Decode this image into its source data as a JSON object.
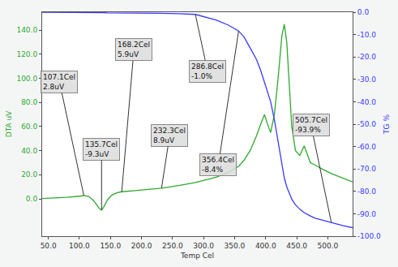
{
  "chart_data": {
    "type": "line",
    "x_label": "Temp Cel",
    "y_label": "DTA uV",
    "y2_label": "TG %",
    "grid": false,
    "tick_labels": true,
    "xlim": [
      40,
      540
    ],
    "xticks": [
      {
        "value": 50,
        "label": "50.0"
      },
      {
        "value": 100,
        "label": "100.0"
      },
      {
        "value": 150,
        "label": "150.0"
      },
      {
        "value": 200,
        "label": "200.0"
      },
      {
        "value": 250,
        "label": "250.0"
      },
      {
        "value": 300,
        "label": "300.0"
      },
      {
        "value": 350,
        "label": "350.0"
      },
      {
        "value": 400,
        "label": "400.0"
      },
      {
        "value": 450,
        "label": "450.0"
      },
      {
        "value": 500,
        "label": "500.0"
      }
    ],
    "ylim": [
      -31,
      155
    ],
    "yticks": [
      {
        "value": 0,
        "label": "0.0"
      },
      {
        "value": 20,
        "label": "20.0"
      },
      {
        "value": 40,
        "label": "40.0"
      },
      {
        "value": 60,
        "label": "60.0"
      },
      {
        "value": 80,
        "label": "80.0"
      },
      {
        "value": 100,
        "label": "100.0"
      },
      {
        "value": 120,
        "label": "120.0"
      },
      {
        "value": 140,
        "label": "140.0"
      }
    ],
    "y2lim": [
      -100,
      0
    ],
    "y2ticks": [
      {
        "value": -100,
        "label": "-100.0"
      },
      {
        "value": -90,
        "label": "-90.0"
      },
      {
        "value": -80,
        "label": "-80.0"
      },
      {
        "value": -70,
        "label": "-70.0"
      },
      {
        "value": -60,
        "label": "-60.0"
      },
      {
        "value": -50,
        "label": "-50.0"
      },
      {
        "value": -40,
        "label": "-40.0"
      },
      {
        "value": -30,
        "label": "-30.0"
      },
      {
        "value": -20,
        "label": "-20.0"
      },
      {
        "value": -10,
        "label": "-10.0"
      },
      {
        "value": 0,
        "label": "0.0"
      }
    ],
    "x": [
      40,
      60,
      80,
      100,
      107.1,
      115,
      122,
      128,
      132,
      135.7,
      139,
      145,
      152,
      160,
      168.2,
      190,
      210,
      232.3,
      260,
      286.8,
      320,
      340,
      356.4,
      365,
      375,
      385,
      392,
      398,
      403,
      408,
      414,
      420,
      426,
      430,
      434,
      438,
      442,
      448,
      455,
      462,
      466,
      472,
      480,
      490,
      505.7,
      515,
      525,
      540
    ],
    "series": [
      {
        "color": "#2fa82f",
        "axis": "y",
        "values": [
          0.3,
          0.6,
          1.2,
          2.2,
          2.8,
          2.0,
          -1.0,
          -5.0,
          -8.0,
          -9.3,
          -7.0,
          -1.0,
          3.0,
          5.0,
          5.9,
          6.8,
          7.8,
          8.9,
          11.0,
          13.5,
          18.0,
          22.0,
          27.0,
          32.0,
          40.0,
          52.0,
          62.0,
          70.0,
          62.0,
          55.0,
          70.0,
          100.0,
          135.0,
          145.0,
          130.0,
          95.0,
          60.0,
          40.0,
          36.0,
          44.0,
          38.0,
          30.0,
          28.0,
          25.0,
          21.0,
          19.0,
          17.0,
          14.0
        ]
      },
      {
        "color": "#3a3aff",
        "axis": "y2",
        "values": [
          0.0,
          0.0,
          -0.1,
          -0.1,
          -0.1,
          -0.2,
          -0.2,
          -0.2,
          -0.2,
          -0.2,
          -0.2,
          -0.3,
          -0.3,
          -0.3,
          -0.3,
          -0.4,
          -0.4,
          -0.5,
          -0.7,
          -1.0,
          -3.5,
          -5.8,
          -8.4,
          -11.0,
          -16.0,
          -21.0,
          -26.0,
          -31.0,
          -35.0,
          -40.0,
          -48.0,
          -58.0,
          -68.0,
          -74.0,
          -78.0,
          -81.0,
          -83.5,
          -86.0,
          -88.0,
          -89.5,
          -90.2,
          -91.0,
          -92.0,
          -92.8,
          -93.9,
          -94.6,
          -95.3,
          -96.2
        ]
      }
    ],
    "annotations": [
      {
        "x": 107.1,
        "y": 2.8,
        "axis": "y",
        "text": [
          "107.1Cel",
          "2.8uV"
        ]
      },
      {
        "x": 135.7,
        "y": -9.3,
        "axis": "y",
        "text": [
          "135.7Cel",
          "-9.3uV"
        ]
      },
      {
        "x": 168.2,
        "y": 5.9,
        "axis": "y",
        "text": [
          "168.2Cel",
          "5.9uV"
        ]
      },
      {
        "x": 232.3,
        "y": 8.9,
        "axis": "y",
        "text": [
          "232.3Cel",
          "8.9uV"
        ]
      },
      {
        "x": 286.8,
        "y": -1.0,
        "axis": "y2",
        "text": [
          "286.8Cel",
          "-1.0%"
        ]
      },
      {
        "x": 356.4,
        "y": -8.4,
        "axis": "y2",
        "text": [
          "356.4Cel",
          "-8.4%"
        ]
      },
      {
        "x": 505.7,
        "y": -93.9,
        "axis": "y2",
        "text": [
          "505.7Cel",
          "-93.9%"
        ]
      }
    ]
  }
}
